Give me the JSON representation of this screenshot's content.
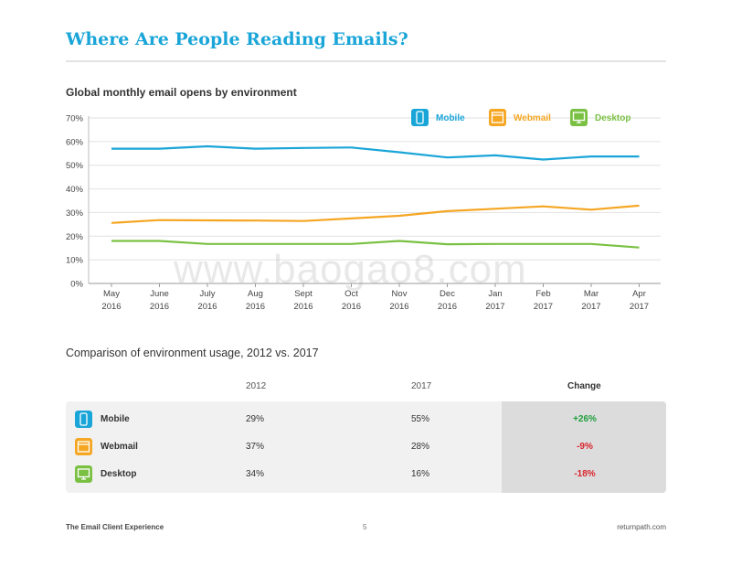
{
  "header": {
    "title": "Where Are People Reading Emails?"
  },
  "chart_data": {
    "type": "line",
    "title": "Global monthly email opens by environment",
    "categories": [
      [
        "May",
        "2016"
      ],
      [
        "June",
        "2016"
      ],
      [
        "July",
        "2016"
      ],
      [
        "Aug",
        "2016"
      ],
      [
        "Sept",
        "2016"
      ],
      [
        "Oct",
        "2016"
      ],
      [
        "Nov",
        "2016"
      ],
      [
        "Dec",
        "2016"
      ],
      [
        "Jan",
        "2017"
      ],
      [
        "Feb",
        "2017"
      ],
      [
        "Mar",
        "2017"
      ],
      [
        "Apr",
        "2017"
      ]
    ],
    "ylim": [
      0,
      70
    ],
    "yticks": [
      "0%",
      "10%",
      "20%",
      "30%",
      "40%",
      "50%",
      "60%",
      "70%"
    ],
    "grid": true,
    "legend_position": "top-right",
    "series": [
      {
        "name": "Mobile",
        "icon": "mobile-phone-icon",
        "color": "#1aa5d8",
        "values": [
          57,
          57,
          58,
          57,
          57.3,
          57.5,
          55.5,
          53.3,
          54.2,
          52.4,
          53.7,
          53.7
        ]
      },
      {
        "name": "Webmail",
        "icon": "browser-window-icon",
        "color": "#f5a623",
        "values": [
          25.6,
          26.8,
          26.7,
          26.6,
          26.4,
          27.5,
          28.6,
          30.6,
          31.6,
          32.6,
          31.2,
          32.9
        ]
      },
      {
        "name": "Desktop",
        "icon": "desktop-monitor-icon",
        "color": "#7ac143",
        "values": [
          18,
          18,
          16.7,
          16.7,
          16.7,
          16.7,
          18,
          16.6,
          16.7,
          16.7,
          16.7,
          15.2
        ]
      }
    ]
  },
  "watermark": "www.baogao8.com",
  "table": {
    "title": "Comparison of environment usage, 2012 vs. 2017",
    "headers": {
      "y2012": "2012",
      "y2017": "2017",
      "change": "Change"
    },
    "rows": [
      {
        "label": "Mobile",
        "icon": "mobile-phone-icon",
        "color": "#1aa5d8",
        "y2012": "29%",
        "y2017": "55%",
        "change": "+26%",
        "trend": "up"
      },
      {
        "label": "Webmail",
        "icon": "browser-window-icon",
        "color": "#f5a623",
        "y2012": "37%",
        "y2017": "28%",
        "change": "-9%",
        "trend": "down"
      },
      {
        "label": "Desktop",
        "icon": "desktop-monitor-icon",
        "color": "#7ac143",
        "y2012": "34%",
        "y2017": "16%",
        "change": "-18%",
        "trend": "down"
      }
    ]
  },
  "footer": {
    "left": "The Email Client Experience",
    "page": "5",
    "right": "returnpath.com"
  }
}
